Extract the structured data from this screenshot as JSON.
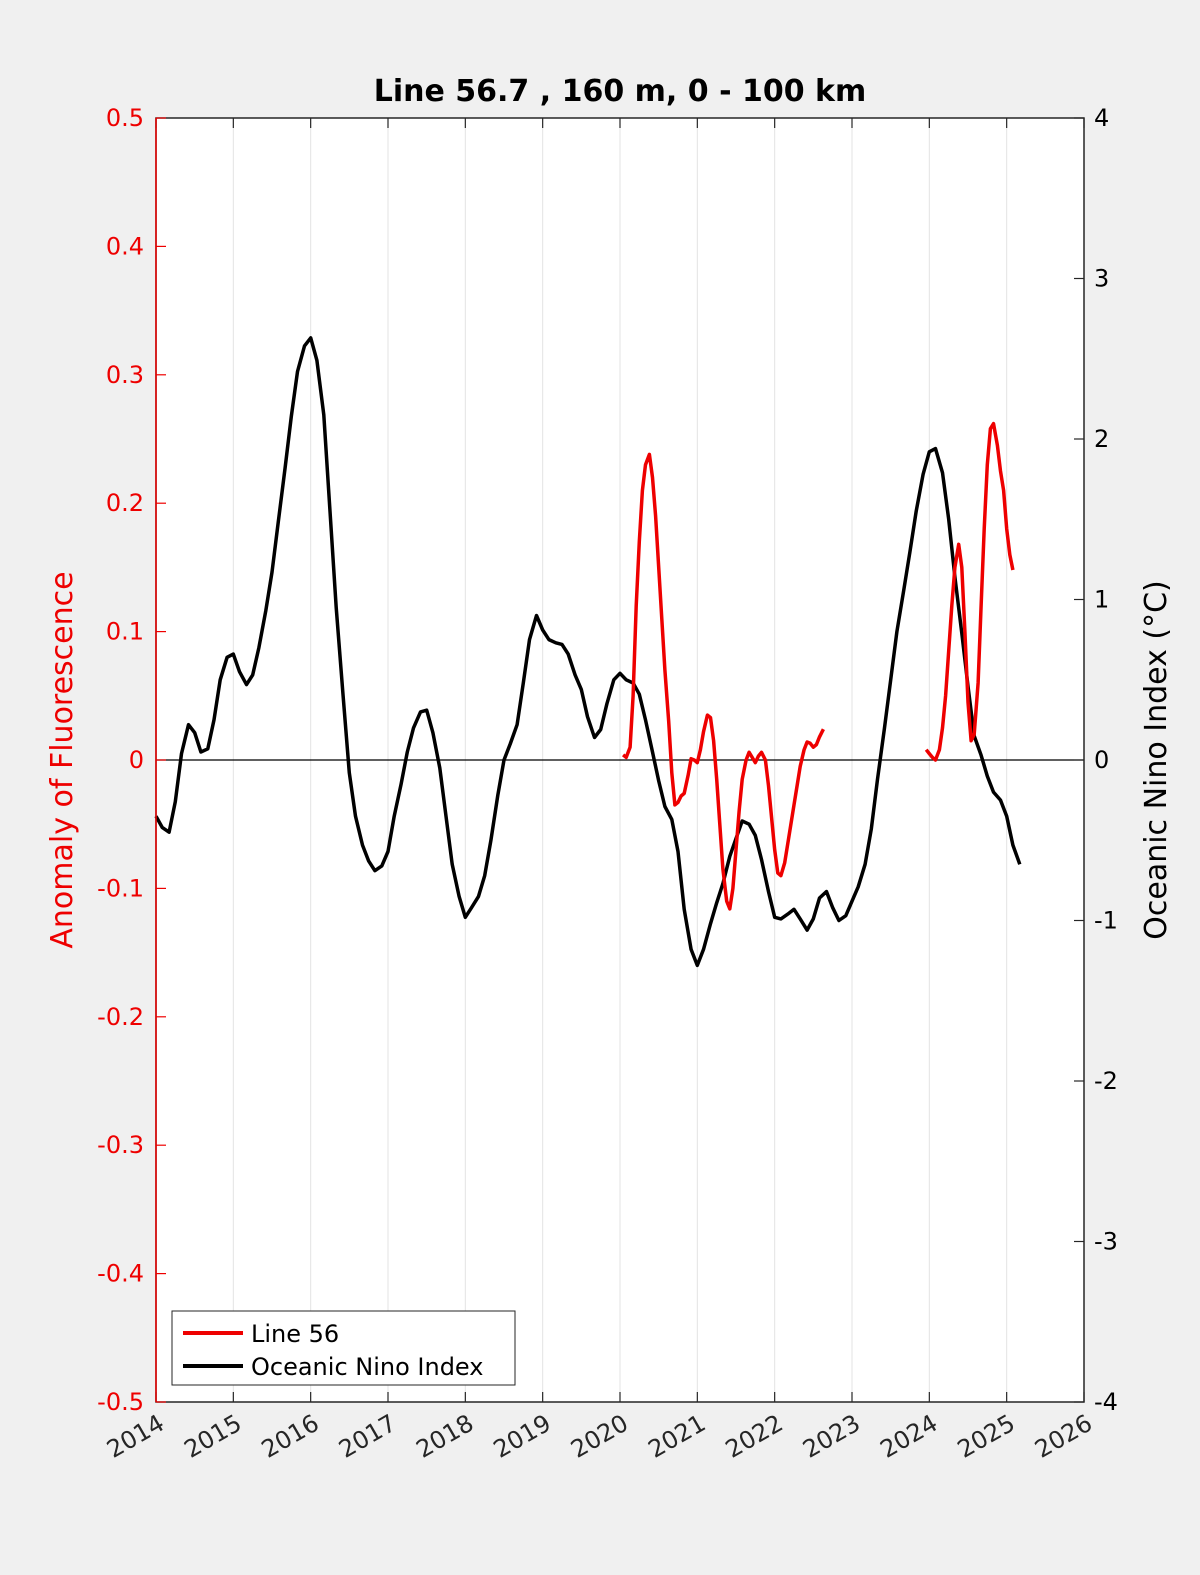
{
  "chart_data": {
    "type": "line",
    "title": "Line 56.7 , 160 m, 0 - 100 km",
    "xlabel": "",
    "ylabel_left": "Anomaly of Fluorescence",
    "ylabel_right": "Oceanic Nino Index (°C)",
    "xlim": [
      2014,
      2026
    ],
    "ylim_left": [
      -0.5,
      0.5
    ],
    "ylim_right": [
      -4,
      4
    ],
    "x_ticks": [
      "2014",
      "2015",
      "2016",
      "2017",
      "2018",
      "2019",
      "2020",
      "2021",
      "2022",
      "2023",
      "2024",
      "2025",
      "2026"
    ],
    "y_left_ticks": [
      "-0.5",
      "-0.4",
      "-0.3",
      "-0.2",
      "-0.1",
      "0",
      "0.1",
      "0.2",
      "0.3",
      "0.4",
      "0.5"
    ],
    "y_right_ticks": [
      "-4",
      "-3",
      "-2",
      "-1",
      "0",
      "1",
      "2",
      "3",
      "4"
    ],
    "grid": "vertical",
    "zero_line": true,
    "legend_position": "bottom-left",
    "colors": {
      "line56": "#ee0000",
      "oni": "#000000",
      "left_axis": "#ee0000",
      "right_axis": "#000000"
    },
    "series": [
      {
        "name": "Line 56",
        "axis": "left",
        "segments": [
          [
            [
              2020.04,
              0.004
            ],
            [
              2020.08,
              0.002
            ],
            [
              2020.13,
              0.01
            ],
            [
              2020.17,
              0.05
            ],
            [
              2020.21,
              0.12
            ],
            [
              2020.25,
              0.17
            ],
            [
              2020.29,
              0.21
            ],
            [
              2020.33,
              0.23
            ],
            [
              2020.38,
              0.238
            ],
            [
              2020.42,
              0.22
            ],
            [
              2020.46,
              0.19
            ],
            [
              2020.5,
              0.15
            ],
            [
              2020.54,
              0.11
            ],
            [
              2020.58,
              0.07
            ],
            [
              2020.63,
              0.03
            ],
            [
              2020.67,
              -0.01
            ],
            [
              2020.71,
              -0.035
            ],
            [
              2020.75,
              -0.033
            ],
            [
              2020.79,
              -0.028
            ],
            [
              2020.83,
              -0.026
            ],
            [
              2020.88,
              -0.012
            ],
            [
              2020.92,
              0.001
            ],
            [
              2020.96,
              0.0
            ],
            [
              2021.0,
              -0.002
            ],
            [
              2021.04,
              0.008
            ],
            [
              2021.08,
              0.022
            ],
            [
              2021.13,
              0.035
            ],
            [
              2021.17,
              0.033
            ],
            [
              2021.21,
              0.015
            ],
            [
              2021.25,
              -0.015
            ],
            [
              2021.29,
              -0.05
            ],
            [
              2021.33,
              -0.085
            ],
            [
              2021.38,
              -0.11
            ],
            [
              2021.42,
              -0.116
            ],
            [
              2021.46,
              -0.1
            ],
            [
              2021.5,
              -0.07
            ],
            [
              2021.54,
              -0.04
            ],
            [
              2021.58,
              -0.015
            ],
            [
              2021.63,
              0.0
            ],
            [
              2021.67,
              0.006
            ],
            [
              2021.71,
              0.002
            ],
            [
              2021.75,
              -0.002
            ],
            [
              2021.79,
              0.003
            ],
            [
              2021.83,
              0.006
            ],
            [
              2021.88,
              0.0
            ],
            [
              2021.92,
              -0.02
            ],
            [
              2021.96,
              -0.045
            ],
            [
              2022.0,
              -0.07
            ],
            [
              2022.04,
              -0.088
            ],
            [
              2022.08,
              -0.09
            ],
            [
              2022.13,
              -0.08
            ],
            [
              2022.17,
              -0.065
            ],
            [
              2022.21,
              -0.05
            ],
            [
              2022.25,
              -0.035
            ],
            [
              2022.29,
              -0.02
            ],
            [
              2022.33,
              -0.005
            ],
            [
              2022.38,
              0.008
            ],
            [
              2022.42,
              0.014
            ],
            [
              2022.46,
              0.013
            ],
            [
              2022.5,
              0.01
            ],
            [
              2022.54,
              0.012
            ],
            [
              2022.58,
              0.018
            ],
            [
              2022.63,
              0.024
            ]
          ],
          [
            [
              2023.96,
              0.008
            ],
            [
              2024.0,
              0.005
            ],
            [
              2024.04,
              0.002
            ],
            [
              2024.08,
              0.0
            ],
            [
              2024.13,
              0.008
            ],
            [
              2024.17,
              0.025
            ],
            [
              2024.21,
              0.05
            ],
            [
              2024.25,
              0.085
            ],
            [
              2024.29,
              0.12
            ],
            [
              2024.33,
              0.15
            ],
            [
              2024.38,
              0.168
            ],
            [
              2024.42,
              0.15
            ],
            [
              2024.46,
              0.1
            ],
            [
              2024.5,
              0.045
            ],
            [
              2024.54,
              0.015
            ],
            [
              2024.58,
              0.02
            ],
            [
              2024.63,
              0.06
            ],
            [
              2024.67,
              0.12
            ],
            [
              2024.71,
              0.18
            ],
            [
              2024.75,
              0.23
            ],
            [
              2024.79,
              0.258
            ],
            [
              2024.83,
              0.262
            ],
            [
              2024.88,
              0.245
            ],
            [
              2024.92,
              0.225
            ],
            [
              2024.96,
              0.21
            ],
            [
              2025.0,
              0.18
            ],
            [
              2025.04,
              0.16
            ],
            [
              2025.08,
              0.148
            ]
          ]
        ]
      },
      {
        "name": "Oceanic Nino Index",
        "axis": "right",
        "points": [
          [
            2014.0,
            -0.35
          ],
          [
            2014.08,
            -0.42
          ],
          [
            2014.17,
            -0.45
          ],
          [
            2014.25,
            -0.26
          ],
          [
            2014.33,
            0.04
          ],
          [
            2014.42,
            0.22
          ],
          [
            2014.5,
            0.17
          ],
          [
            2014.58,
            0.05
          ],
          [
            2014.67,
            0.07
          ],
          [
            2014.75,
            0.25
          ],
          [
            2014.83,
            0.5
          ],
          [
            2014.92,
            0.64
          ],
          [
            2015.0,
            0.66
          ],
          [
            2015.08,
            0.55
          ],
          [
            2015.17,
            0.47
          ],
          [
            2015.25,
            0.53
          ],
          [
            2015.33,
            0.7
          ],
          [
            2015.42,
            0.93
          ],
          [
            2015.5,
            1.17
          ],
          [
            2015.58,
            1.48
          ],
          [
            2015.67,
            1.82
          ],
          [
            2015.75,
            2.14
          ],
          [
            2015.83,
            2.42
          ],
          [
            2015.92,
            2.58
          ],
          [
            2016.0,
            2.63
          ],
          [
            2016.08,
            2.49
          ],
          [
            2016.17,
            2.15
          ],
          [
            2016.25,
            1.55
          ],
          [
            2016.33,
            0.95
          ],
          [
            2016.42,
            0.4
          ],
          [
            2016.5,
            -0.08
          ],
          [
            2016.58,
            -0.35
          ],
          [
            2016.67,
            -0.53
          ],
          [
            2016.75,
            -0.63
          ],
          [
            2016.83,
            -0.69
          ],
          [
            2016.92,
            -0.66
          ],
          [
            2017.0,
            -0.57
          ],
          [
            2017.08,
            -0.35
          ],
          [
            2017.17,
            -0.15
          ],
          [
            2017.25,
            0.05
          ],
          [
            2017.33,
            0.2
          ],
          [
            2017.42,
            0.3
          ],
          [
            2017.5,
            0.31
          ],
          [
            2017.58,
            0.17
          ],
          [
            2017.67,
            -0.05
          ],
          [
            2017.75,
            -0.35
          ],
          [
            2017.83,
            -0.65
          ],
          [
            2017.92,
            -0.85
          ],
          [
            2018.0,
            -0.98
          ],
          [
            2018.08,
            -0.92
          ],
          [
            2018.17,
            -0.85
          ],
          [
            2018.25,
            -0.72
          ],
          [
            2018.33,
            -0.5
          ],
          [
            2018.42,
            -0.22
          ],
          [
            2018.5,
            0.0
          ],
          [
            2018.58,
            0.1
          ],
          [
            2018.67,
            0.22
          ],
          [
            2018.75,
            0.48
          ],
          [
            2018.83,
            0.75
          ],
          [
            2018.92,
            0.9
          ],
          [
            2019.0,
            0.81
          ],
          [
            2019.08,
            0.75
          ],
          [
            2019.17,
            0.73
          ],
          [
            2019.25,
            0.72
          ],
          [
            2019.33,
            0.66
          ],
          [
            2019.42,
            0.53
          ],
          [
            2019.5,
            0.44
          ],
          [
            2019.58,
            0.27
          ],
          [
            2019.67,
            0.14
          ],
          [
            2019.75,
            0.19
          ],
          [
            2019.83,
            0.35
          ],
          [
            2019.92,
            0.5
          ],
          [
            2020.0,
            0.54
          ],
          [
            2020.08,
            0.5
          ],
          [
            2020.17,
            0.48
          ],
          [
            2020.25,
            0.41
          ],
          [
            2020.33,
            0.25
          ],
          [
            2020.42,
            0.05
          ],
          [
            2020.5,
            -0.13
          ],
          [
            2020.58,
            -0.29
          ],
          [
            2020.67,
            -0.37
          ],
          [
            2020.75,
            -0.57
          ],
          [
            2020.83,
            -0.93
          ],
          [
            2020.92,
            -1.18
          ],
          [
            2021.0,
            -1.28
          ],
          [
            2021.08,
            -1.18
          ],
          [
            2021.17,
            -1.02
          ],
          [
            2021.25,
            -0.89
          ],
          [
            2021.33,
            -0.77
          ],
          [
            2021.42,
            -0.6
          ],
          [
            2021.5,
            -0.49
          ],
          [
            2021.58,
            -0.38
          ],
          [
            2021.67,
            -0.4
          ],
          [
            2021.75,
            -0.47
          ],
          [
            2021.83,
            -0.62
          ],
          [
            2021.92,
            -0.82
          ],
          [
            2022.0,
            -0.98
          ],
          [
            2022.08,
            -0.99
          ],
          [
            2022.17,
            -0.96
          ],
          [
            2022.25,
            -0.93
          ],
          [
            2022.33,
            -0.99
          ],
          [
            2022.42,
            -1.06
          ],
          [
            2022.5,
            -0.99
          ],
          [
            2022.58,
            -0.86
          ],
          [
            2022.67,
            -0.82
          ],
          [
            2022.75,
            -0.92
          ],
          [
            2022.83,
            -1.0
          ],
          [
            2022.92,
            -0.97
          ],
          [
            2023.0,
            -0.88
          ],
          [
            2023.08,
            -0.79
          ],
          [
            2023.17,
            -0.65
          ],
          [
            2023.25,
            -0.43
          ],
          [
            2023.33,
            -0.12
          ],
          [
            2023.42,
            0.2
          ],
          [
            2023.5,
            0.5
          ],
          [
            2023.58,
            0.8
          ],
          [
            2023.67,
            1.06
          ],
          [
            2023.75,
            1.3
          ],
          [
            2023.83,
            1.55
          ],
          [
            2023.92,
            1.78
          ],
          [
            2024.0,
            1.92
          ],
          [
            2024.08,
            1.94
          ],
          [
            2024.17,
            1.79
          ],
          [
            2024.25,
            1.5
          ],
          [
            2024.33,
            1.14
          ],
          [
            2024.42,
            0.79
          ],
          [
            2024.5,
            0.46
          ],
          [
            2024.58,
            0.15
          ],
          [
            2024.67,
            0.03
          ],
          [
            2024.75,
            -0.1
          ],
          [
            2024.83,
            -0.2
          ],
          [
            2024.92,
            -0.25
          ],
          [
            2025.0,
            -0.35
          ],
          [
            2025.08,
            -0.53
          ],
          [
            2025.17,
            -0.65
          ]
        ]
      }
    ]
  }
}
